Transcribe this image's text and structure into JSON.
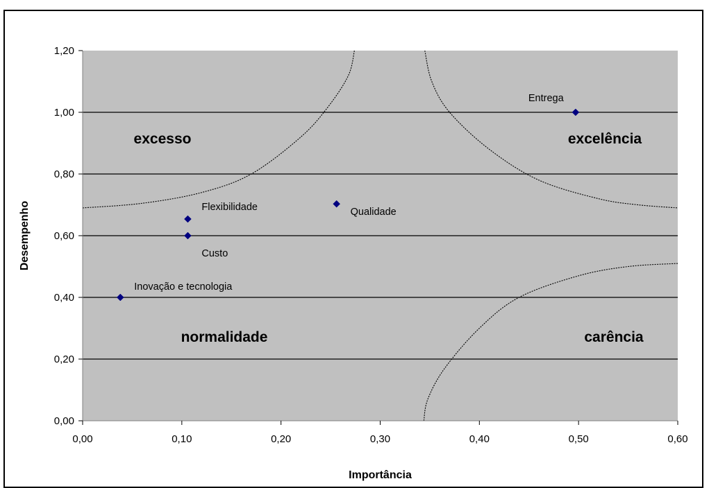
{
  "chart_data": {
    "type": "scatter",
    "xlabel": "Importância",
    "ylabel": "Desempenho",
    "xlim": [
      0,
      0.6
    ],
    "ylim": [
      0,
      1.2
    ],
    "x_ticks": [
      "0,00",
      "0,10",
      "0,20",
      "0,30",
      "0,40",
      "0,50",
      "0,60"
    ],
    "y_ticks": [
      "0,00",
      "0,20",
      "0,40",
      "0,60",
      "0,80",
      "1,00",
      "1,20"
    ],
    "grid": "horizontal",
    "plot_background": "#C0C0C0",
    "marker_color": "#000080",
    "points": [
      {
        "label": "Entrega",
        "x": 0.497,
        "y": 1.0
      },
      {
        "label": "Qualidade",
        "x": 0.256,
        "y": 0.703
      },
      {
        "label": "Flexibilidade",
        "x": 0.106,
        "y": 0.654
      },
      {
        "label": "Custo",
        "x": 0.106,
        "y": 0.6
      },
      {
        "label": "Inovação e tecnologia",
        "x": 0.038,
        "y": 0.4
      }
    ],
    "regions": [
      {
        "label": "excesso",
        "position": "top-left"
      },
      {
        "label": "excelência",
        "position": "top-right"
      },
      {
        "label": "normalidade",
        "position": "bottom-left"
      },
      {
        "label": "carência",
        "position": "bottom-right"
      }
    ],
    "boundary_curves": [
      {
        "name": "excesso-boundary",
        "points": [
          [
            0.0,
            0.69
          ],
          [
            0.06,
            0.705
          ],
          [
            0.12,
            0.74
          ],
          [
            0.17,
            0.8
          ],
          [
            0.22,
            0.92
          ],
          [
            0.248,
            1.02
          ],
          [
            0.268,
            1.12
          ],
          [
            0.274,
            1.2
          ]
        ]
      },
      {
        "name": "excelencia-boundary",
        "points": [
          [
            0.345,
            1.2
          ],
          [
            0.352,
            1.1
          ],
          [
            0.37,
            1.0
          ],
          [
            0.41,
            0.88
          ],
          [
            0.46,
            0.78
          ],
          [
            0.52,
            0.72
          ],
          [
            0.56,
            0.7
          ],
          [
            0.6,
            0.69
          ]
        ]
      },
      {
        "name": "carencia-boundary",
        "points": [
          [
            0.344,
            0.0
          ],
          [
            0.348,
            0.07
          ],
          [
            0.365,
            0.17
          ],
          [
            0.4,
            0.3
          ],
          [
            0.44,
            0.4
          ],
          [
            0.5,
            0.47
          ],
          [
            0.55,
            0.5
          ],
          [
            0.6,
            0.51
          ]
        ]
      }
    ]
  }
}
